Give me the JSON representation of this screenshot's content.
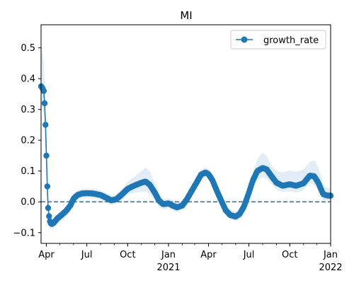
{
  "chart_data": {
    "type": "line",
    "title": "MI",
    "xlabel": "",
    "ylabel": "",
    "xlim": [
      "2020-03-20",
      "2022-01-01"
    ],
    "ylim": [
      -0.135,
      0.575
    ],
    "y_ticks": [
      -0.1,
      0.0,
      0.1,
      0.2,
      0.3,
      0.4,
      0.5
    ],
    "y_tick_labels": [
      "−0.1",
      "0.0",
      "0.1",
      "0.2",
      "0.3",
      "0.4",
      "0.5"
    ],
    "x_ticks": [
      {
        "date": "2020-04-01",
        "label": "Apr",
        "year": ""
      },
      {
        "date": "2020-07-01",
        "label": "Jul",
        "year": ""
      },
      {
        "date": "2020-10-01",
        "label": "Oct",
        "year": ""
      },
      {
        "date": "2021-01-01",
        "label": "Jan",
        "year": "2021"
      },
      {
        "date": "2021-04-01",
        "label": "Apr",
        "year": ""
      },
      {
        "date": "2021-07-01",
        "label": "Jul",
        "year": ""
      },
      {
        "date": "2021-10-01",
        "label": "Oct",
        "year": ""
      },
      {
        "date": "2022-01-01",
        "label": "Jan",
        "year": "2022"
      }
    ],
    "reference_line": {
      "y": 0.0,
      "style": "dashed",
      "color": "#1f77b4"
    },
    "legend": {
      "position": "top-right"
    },
    "series": [
      {
        "name": "growth_rate",
        "color": "#1f77b4",
        "band_color": "#c6dbef",
        "points": [
          [
            "2020-03-20",
            0.375,
            0.51,
            0.3
          ],
          [
            "2020-03-23",
            0.37,
            0.49,
            0.31
          ],
          [
            "2020-03-26",
            0.36,
            0.45,
            0.29
          ],
          [
            "2020-03-28",
            0.32,
            0.39,
            0.26
          ],
          [
            "2020-03-30",
            0.25,
            0.3,
            0.2
          ],
          [
            "2020-04-01",
            0.15,
            0.19,
            0.11
          ],
          [
            "2020-04-03",
            0.05,
            0.08,
            0.02
          ],
          [
            "2020-04-05",
            -0.02,
            0.0,
            -0.04
          ],
          [
            "2020-04-08",
            -0.06,
            -0.045,
            -0.08
          ],
          [
            "2020-04-12",
            -0.073,
            -0.058,
            -0.09
          ],
          [
            "2020-04-18",
            -0.068,
            -0.053,
            -0.085
          ],
          [
            "2020-04-25",
            -0.055,
            -0.04,
            -0.072
          ],
          [
            "2020-05-05",
            -0.043,
            -0.028,
            -0.06
          ],
          [
            "2020-05-15",
            -0.03,
            -0.015,
            -0.05
          ],
          [
            "2020-05-25",
            -0.012,
            0.004,
            -0.03
          ],
          [
            "2020-06-01",
            0.01,
            0.025,
            -0.005
          ],
          [
            "2020-06-10",
            0.022,
            0.038,
            0.007
          ],
          [
            "2020-06-20",
            0.027,
            0.042,
            0.012
          ],
          [
            "2020-07-01",
            0.028,
            0.043,
            0.013
          ],
          [
            "2020-07-15",
            0.027,
            0.042,
            0.012
          ],
          [
            "2020-08-01",
            0.022,
            0.037,
            0.007
          ],
          [
            "2020-08-15",
            0.012,
            0.028,
            -0.003
          ],
          [
            "2020-08-25",
            0.005,
            0.02,
            -0.01
          ],
          [
            "2020-09-05",
            0.008,
            0.023,
            -0.007
          ],
          [
            "2020-09-15",
            0.02,
            0.037,
            0.004
          ],
          [
            "2020-10-01",
            0.042,
            0.065,
            0.022
          ],
          [
            "2020-10-15",
            0.052,
            0.08,
            0.03
          ],
          [
            "2020-11-01",
            0.062,
            0.1,
            0.032
          ],
          [
            "2020-11-10",
            0.066,
            0.112,
            0.034
          ],
          [
            "2020-11-20",
            0.055,
            0.1,
            0.025
          ],
          [
            "2020-12-01",
            0.03,
            0.06,
            0.005
          ],
          [
            "2020-12-10",
            0.005,
            0.03,
            -0.015
          ],
          [
            "2020-12-20",
            -0.008,
            0.01,
            -0.025
          ],
          [
            "2021-01-01",
            -0.005,
            0.012,
            -0.022
          ],
          [
            "2021-01-10",
            -0.012,
            0.005,
            -0.028
          ],
          [
            "2021-01-20",
            -0.018,
            -0.002,
            -0.033
          ],
          [
            "2021-02-01",
            -0.012,
            0.004,
            -0.028
          ],
          [
            "2021-02-10",
            0.005,
            0.022,
            -0.01
          ],
          [
            "2021-02-20",
            0.03,
            0.05,
            0.012
          ],
          [
            "2021-03-05",
            0.062,
            0.08,
            0.045
          ],
          [
            "2021-03-15",
            0.088,
            0.105,
            0.072
          ],
          [
            "2021-03-25",
            0.095,
            0.112,
            0.078
          ],
          [
            "2021-04-01",
            0.09,
            0.108,
            0.072
          ],
          [
            "2021-04-10",
            0.07,
            0.087,
            0.053
          ],
          [
            "2021-04-20",
            0.035,
            0.052,
            0.018
          ],
          [
            "2021-05-01",
            0.0,
            0.016,
            -0.016
          ],
          [
            "2021-05-10",
            -0.028,
            -0.012,
            -0.044
          ],
          [
            "2021-05-20",
            -0.043,
            -0.027,
            -0.058
          ],
          [
            "2021-06-01",
            -0.048,
            -0.032,
            -0.063
          ],
          [
            "2021-06-10",
            -0.04,
            -0.024,
            -0.056
          ],
          [
            "2021-06-20",
            -0.015,
            0.003,
            -0.032
          ],
          [
            "2021-07-01",
            0.03,
            0.052,
            0.01
          ],
          [
            "2021-07-10",
            0.07,
            0.095,
            0.048
          ],
          [
            "2021-07-20",
            0.1,
            0.14,
            0.07
          ],
          [
            "2021-08-01",
            0.11,
            0.16,
            0.08
          ],
          [
            "2021-08-10",
            0.105,
            0.15,
            0.075
          ],
          [
            "2021-08-20",
            0.085,
            0.12,
            0.058
          ],
          [
            "2021-09-01",
            0.062,
            0.1,
            0.04
          ],
          [
            "2021-09-15",
            0.052,
            0.095,
            0.032
          ],
          [
            "2021-10-01",
            0.057,
            0.102,
            0.035
          ],
          [
            "2021-10-15",
            0.052,
            0.098,
            0.03
          ],
          [
            "2021-11-01",
            0.06,
            0.105,
            0.038
          ],
          [
            "2021-11-15",
            0.085,
            0.13,
            0.06
          ],
          [
            "2021-11-25",
            0.083,
            0.135,
            0.055
          ],
          [
            "2021-12-05",
            0.06,
            0.11,
            0.035
          ],
          [
            "2021-12-15",
            0.025,
            0.06,
            0.005
          ],
          [
            "2021-12-25",
            0.02,
            0.045,
            0.005
          ],
          [
            "2022-01-01",
            0.02,
            0.04,
            0.005
          ]
        ]
      }
    ]
  }
}
